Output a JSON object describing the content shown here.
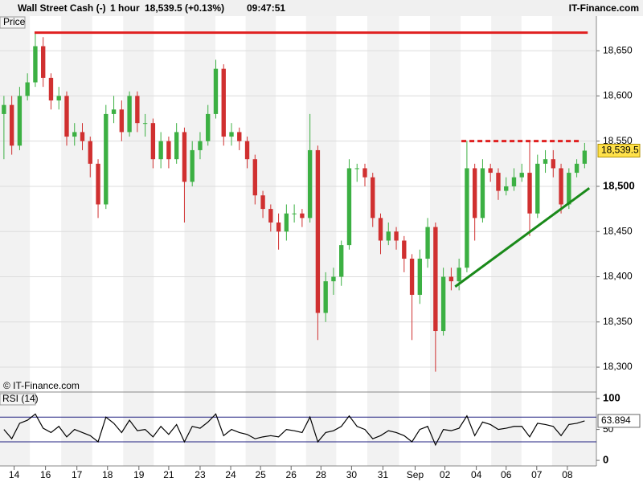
{
  "header": {
    "instrument": "Wall Street Cash (-)",
    "interval": "1 hour",
    "quote": "18,539.5 (+0.13%)",
    "time": "09:47:51",
    "brand": "IT-Finance.com",
    "copyright": "© IT-Finance.com"
  },
  "chart_data": [
    {
      "type": "candlestick",
      "title": "Price",
      "up_color": "#3cb043",
      "down_color": "#d03030",
      "x": [
        0,
        1,
        2,
        3,
        4,
        5,
        6,
        7,
        8,
        9,
        10,
        11,
        12,
        13,
        14,
        15,
        16,
        17,
        18,
        19,
        20,
        21,
        22,
        23,
        24,
        25,
        26,
        27,
        28,
        29,
        30,
        31,
        32,
        33,
        34,
        35,
        36,
        37,
        38,
        39,
        40,
        41,
        42,
        43,
        44,
        45,
        46,
        47,
        48,
        49,
        50,
        51,
        52,
        53,
        54,
        55,
        56,
        57,
        58,
        59,
        60,
        61,
        62,
        63,
        64,
        65,
        66,
        67,
        68,
        69,
        70,
        71,
        72,
        73,
        74
      ],
      "open": [
        18580,
        18590,
        18545,
        18600,
        18615,
        18655,
        18620,
        18595,
        18600,
        18555,
        18560,
        18550,
        18525,
        18480,
        18580,
        18585,
        18560,
        18600,
        18570,
        18570,
        18530,
        18550,
        18530,
        18560,
        18505,
        18540,
        18550,
        18580,
        18630,
        18555,
        18560,
        18550,
        18530,
        18490,
        18475,
        18460,
        18450,
        18470,
        18470,
        18465,
        18540,
        18360,
        18395,
        18400,
        18435,
        18520,
        18520,
        18510,
        18465,
        18440,
        18450,
        18440,
        18420,
        18380,
        18420,
        18455,
        18340,
        18400,
        18395,
        18410,
        18520,
        18465,
        18520,
        18515,
        18495,
        18500,
        18510,
        18515,
        18470,
        18525,
        18530,
        18520,
        18480,
        18515,
        18525
      ],
      "high": [
        18600,
        18600,
        18610,
        18625,
        18670,
        18665,
        18625,
        18610,
        18605,
        18570,
        18570,
        18555,
        18530,
        18590,
        18600,
        18595,
        18605,
        18605,
        18580,
        18575,
        18560,
        18555,
        18570,
        18565,
        18550,
        18560,
        18590,
        18640,
        18635,
        18570,
        18565,
        18555,
        18535,
        18495,
        18480,
        18470,
        18480,
        18480,
        18475,
        18580,
        18545,
        18405,
        18410,
        18440,
        18530,
        18525,
        18525,
        18515,
        18470,
        18460,
        18455,
        18445,
        18425,
        18430,
        18465,
        18460,
        18410,
        18410,
        18420,
        18550,
        18525,
        18530,
        18525,
        18520,
        18510,
        18520,
        18525,
        18550,
        18535,
        18540,
        18540,
        18525,
        18520,
        18530,
        18548
      ],
      "low": [
        18530,
        18535,
        18540,
        18595,
        18610,
        18610,
        18585,
        18585,
        18545,
        18545,
        18540,
        18510,
        18465,
        18475,
        18570,
        18550,
        18555,
        18560,
        18555,
        18520,
        18520,
        18520,
        18525,
        18460,
        18500,
        18530,
        18545,
        18575,
        18545,
        18545,
        18540,
        18520,
        18480,
        18465,
        18450,
        18430,
        18440,
        18460,
        18455,
        18460,
        18330,
        18350,
        18380,
        18390,
        18430,
        18505,
        18500,
        18455,
        18425,
        18435,
        18430,
        18405,
        18330,
        18370,
        18410,
        18295,
        18335,
        18385,
        18385,
        18405,
        18440,
        18460,
        18505,
        18485,
        18490,
        18495,
        18505,
        18445,
        18465,
        18515,
        18510,
        18470,
        18475,
        18510,
        18520
      ],
      "close": [
        18590,
        18545,
        18600,
        18615,
        18655,
        18620,
        18595,
        18600,
        18555,
        18560,
        18550,
        18525,
        18480,
        18580,
        18585,
        18560,
        18600,
        18570,
        18570,
        18530,
        18550,
        18530,
        18560,
        18505,
        18540,
        18550,
        18580,
        18630,
        18555,
        18560,
        18550,
        18530,
        18490,
        18475,
        18460,
        18450,
        18470,
        18470,
        18465,
        18540,
        18360,
        18395,
        18400,
        18435,
        18520,
        18520,
        18510,
        18465,
        18440,
        18450,
        18440,
        18420,
        18380,
        18420,
        18455,
        18340,
        18400,
        18395,
        18410,
        18520,
        18465,
        18520,
        18515,
        18495,
        18500,
        18510,
        18515,
        18470,
        18525,
        18530,
        18520,
        18480,
        18515,
        18525,
        18539.5
      ],
      "last_label": "18,539.5",
      "xlim": [
        -0.5,
        75.5
      ],
      "ylim": [
        18272.5,
        18675
      ],
      "yticks": [
        {
          "value": 18300,
          "label": "18,300"
        },
        {
          "value": 18350,
          "label": "18,350"
        },
        {
          "value": 18400,
          "label": "18,400"
        },
        {
          "value": 18450,
          "label": "18,450"
        },
        {
          "value": 18500,
          "label": "18,500"
        },
        {
          "value": 18550,
          "label": "18,550"
        },
        {
          "value": 18600,
          "label": "18,600"
        },
        {
          "value": 18650,
          "label": "18,650"
        }
      ],
      "xticks": [
        {
          "value": 1.3,
          "label": "14"
        },
        {
          "value": 5.3,
          "label": "16"
        },
        {
          "value": 9.3,
          "label": "17"
        },
        {
          "value": 13.2,
          "label": "18"
        },
        {
          "value": 17.2,
          "label": "19"
        },
        {
          "value": 21.0,
          "label": "21"
        },
        {
          "value": 25.0,
          "label": "23"
        },
        {
          "value": 28.9,
          "label": "24"
        },
        {
          "value": 32.7,
          "label": "25"
        },
        {
          "value": 36.6,
          "label": "26"
        },
        {
          "value": 40.4,
          "label": "28"
        },
        {
          "value": 44.3,
          "label": "30"
        },
        {
          "value": 48.3,
          "label": "31"
        },
        {
          "value": 52.4,
          "label": "Sep"
        },
        {
          "value": 56.2,
          "label": "02"
        },
        {
          "value": 60.2,
          "label": "04"
        },
        {
          "value": 64.0,
          "label": "06"
        },
        {
          "value": 67.9,
          "label": "07"
        },
        {
          "value": 71.8,
          "label": "08"
        }
      ],
      "grid": true,
      "lines": [
        {
          "color": "#e02020",
          "style": "solid",
          "x": [
            3.9,
            74.4
          ],
          "y": [
            18670,
            18670
          ]
        },
        {
          "color": "#e02020",
          "style": "dashed",
          "x": [
            58.3,
            73.5
          ],
          "y": [
            18550,
            18550
          ]
        },
        {
          "color": "#1a8a1a",
          "style": "solid",
          "x": [
            57.5,
            74.6
          ],
          "y": [
            18389,
            18498
          ]
        }
      ]
    },
    {
      "type": "line",
      "title": "RSI (14)",
      "color": "#000000",
      "x": [
        0,
        1,
        2,
        3,
        4,
        5,
        6,
        7,
        8,
        9,
        10,
        11,
        12,
        13,
        14,
        15,
        16,
        17,
        18,
        19,
        20,
        21,
        22,
        23,
        24,
        25,
        26,
        27,
        28,
        29,
        30,
        31,
        32,
        33,
        34,
        35,
        36,
        37,
        38,
        39,
        40,
        41,
        42,
        43,
        44,
        45,
        46,
        47,
        48,
        49,
        50,
        51,
        52,
        53,
        54,
        55,
        56,
        57,
        58,
        59,
        60,
        61,
        62,
        63,
        64,
        65,
        66,
        67,
        68,
        69,
        70,
        71,
        72,
        73,
        74
      ],
      "values": [
        50,
        35,
        60,
        65,
        75,
        52,
        45,
        55,
        38,
        50,
        45,
        40,
        30,
        70,
        60,
        45,
        65,
        48,
        50,
        38,
        55,
        42,
        58,
        30,
        55,
        52,
        62,
        75,
        40,
        50,
        45,
        42,
        35,
        38,
        40,
        38,
        50,
        48,
        45,
        70,
        30,
        45,
        48,
        55,
        72,
        55,
        50,
        35,
        40,
        48,
        45,
        40,
        30,
        50,
        55,
        25,
        50,
        48,
        52,
        72,
        40,
        62,
        58,
        50,
        52,
        55,
        55,
        38,
        60,
        58,
        55,
        40,
        58,
        60,
        63.894
      ],
      "levels": [
        70,
        30
      ],
      "level_color": "#202080",
      "xlim": [
        -0.5,
        75.5
      ],
      "ylim": [
        -9,
        108
      ],
      "yticks": [
        0,
        50,
        100
      ]
    }
  ]
}
